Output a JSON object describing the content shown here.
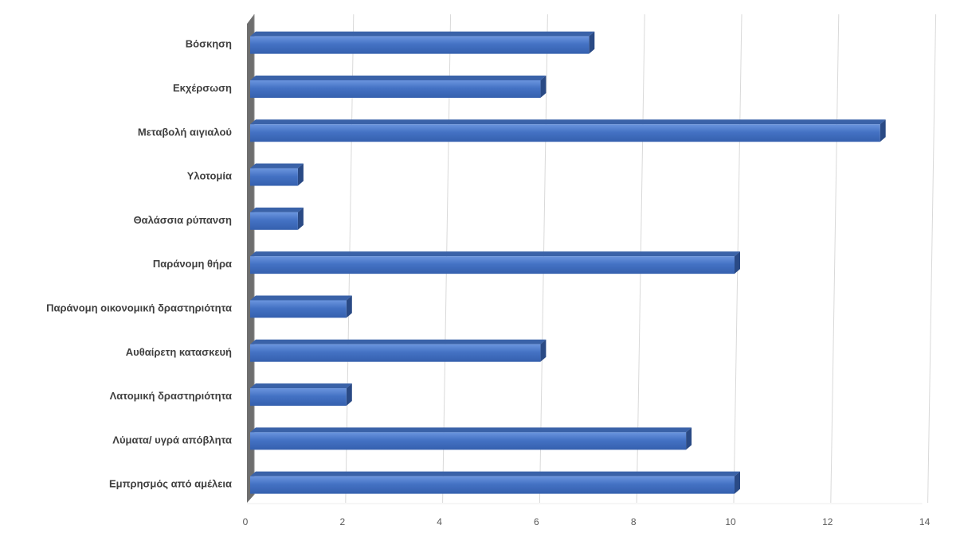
{
  "chart_data": {
    "type": "bar",
    "orientation": "horizontal",
    "style": "3d",
    "title": "",
    "xlabel": "",
    "ylabel": "",
    "categories": [
      "Βόσκηση",
      "Εκχέρσωση",
      "Μεταβολή αιγιαλού",
      "Υλοτομία",
      "Θαλάσσια ρύπανση",
      "Παράνομη θήρα",
      "Παράνομη οικονομική δραστηριότητα",
      "Αυθαίρετη κατασκευή",
      "Λατομική δραστηριότητα",
      "Λύματα/ υγρά απόβλητα",
      "Εμπρησμός από αμέλεια"
    ],
    "values": [
      7,
      6,
      13,
      1,
      1,
      10,
      2,
      6,
      2,
      9,
      10
    ],
    "xlim": [
      0,
      14
    ],
    "ticks": [
      "0",
      "2",
      "4",
      "6",
      "8",
      "10",
      "12",
      "14"
    ],
    "grid": true,
    "legend": "none",
    "colors": {
      "bar_front": "#4472c4",
      "bar_front_light": "#5b8ad8",
      "bar_top": "#3a62a8",
      "bar_side": "#2a4a85",
      "wall": "#6e6e6e",
      "grid": "#d9d9d9",
      "label": "#404040",
      "tick": "#595959"
    }
  }
}
